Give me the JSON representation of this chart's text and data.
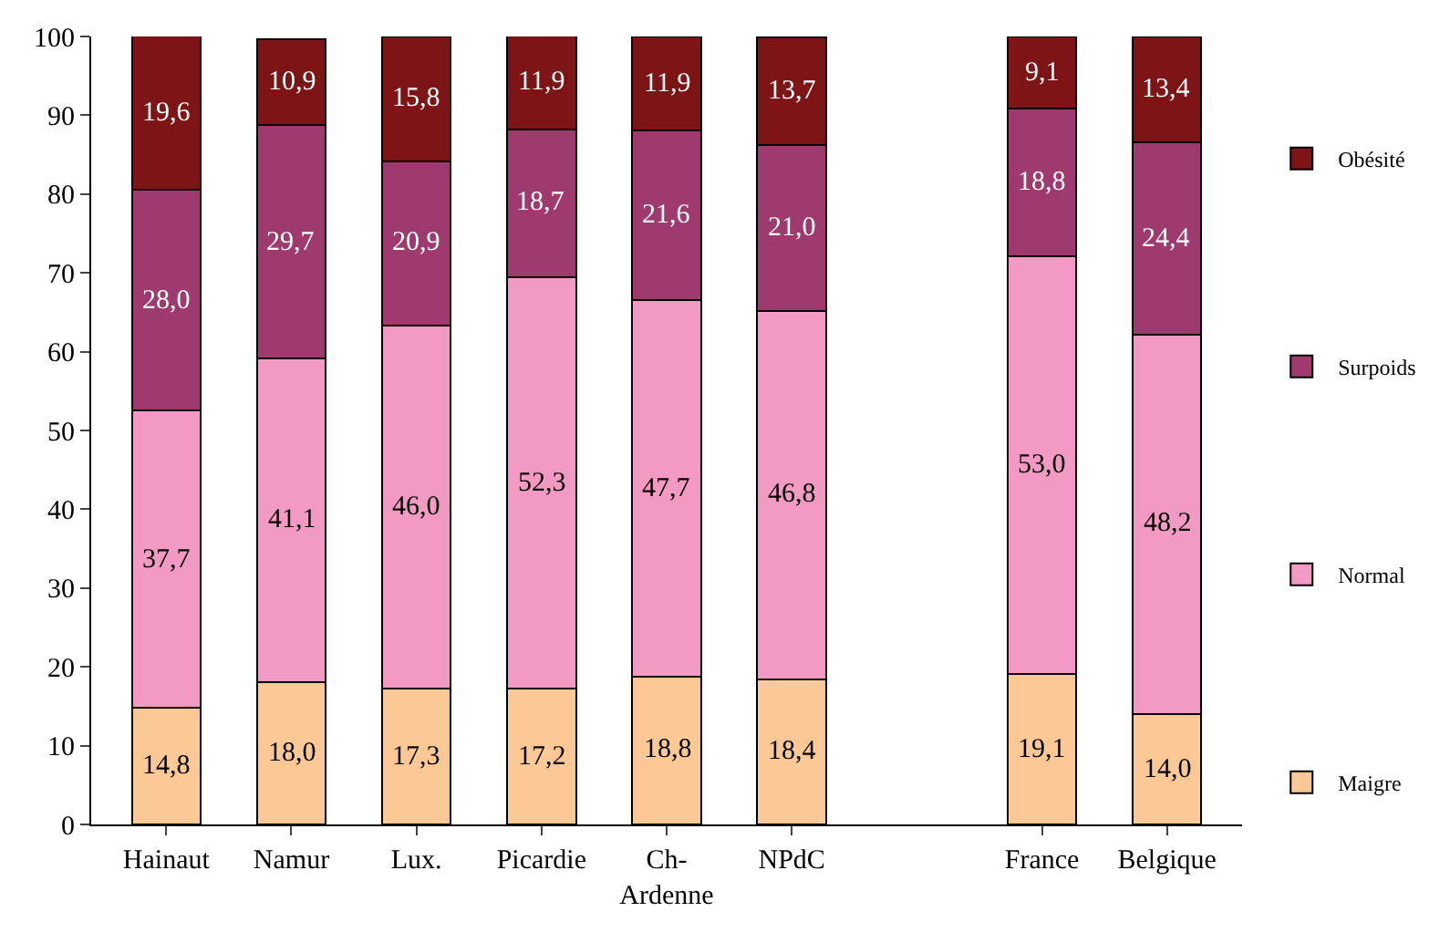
{
  "chart_data": {
    "type": "bar",
    "stacked": true,
    "categories": [
      "Hainaut",
      "Namur",
      "Lux.",
      "Picardie",
      "Ch-Ardenne",
      "NPdC",
      null,
      "France",
      "Belgique"
    ],
    "series": [
      {
        "name": "Maigre",
        "color": "#fbc896",
        "values": [
          14.8,
          18.0,
          17.3,
          17.2,
          18.8,
          18.4,
          null,
          19.1,
          14.0
        ],
        "value_labels": [
          "14,8",
          "18,0",
          "17,3",
          "17,2",
          "18,8",
          "18,4",
          null,
          "19,1",
          "14,0"
        ]
      },
      {
        "name": "Normal",
        "color": "#f29ac4",
        "values": [
          37.7,
          41.1,
          46.0,
          52.3,
          47.7,
          46.8,
          null,
          53.0,
          48.2
        ],
        "value_labels": [
          "37,7",
          "41,1",
          "46,0",
          "52,3",
          "47,7",
          "46,8",
          null,
          "53,0",
          "48,2"
        ]
      },
      {
        "name": "Surpoids",
        "color": "#9e3a6e",
        "values": [
          28.0,
          29.7,
          20.9,
          18.7,
          21.6,
          21.0,
          null,
          18.8,
          24.4
        ],
        "value_labels": [
          "28,0",
          "29,7",
          "20,9",
          "18,7",
          "21,6",
          "21,0",
          null,
          "18,8",
          "24,4"
        ]
      },
      {
        "name": "Obésité",
        "color": "#7d1416",
        "values": [
          19.6,
          10.9,
          15.8,
          11.9,
          11.9,
          13.7,
          null,
          9.1,
          13.4
        ],
        "value_labels": [
          "19,6",
          "10,9",
          "15,8",
          "11,9",
          "11,9",
          "13,7",
          null,
          "9,1",
          "13,4"
        ]
      }
    ],
    "ylim": [
      0,
      100
    ],
    "yticks": [
      0,
      10,
      20,
      30,
      40,
      50,
      60,
      70,
      80,
      90,
      100
    ],
    "grid": false,
    "legend": "right"
  }
}
